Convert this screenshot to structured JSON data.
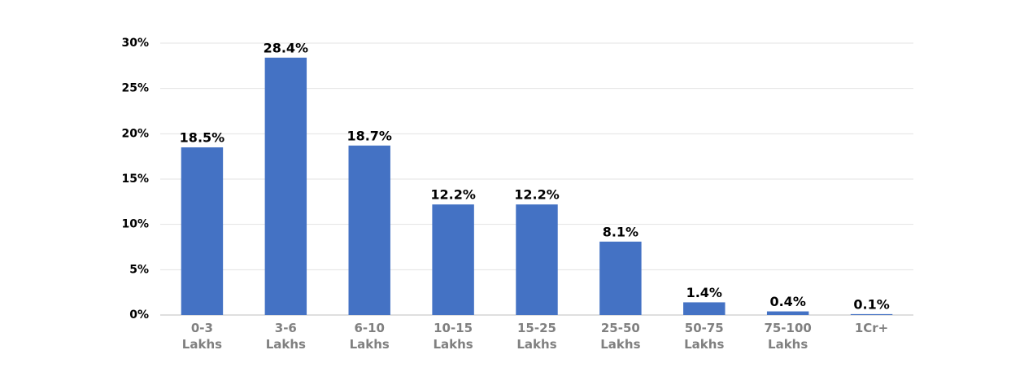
{
  "chart_data": {
    "type": "bar",
    "categories": [
      "0-3 Lakhs",
      "3-6 Lakhs",
      "6-10 Lakhs",
      "10-15 Lakhs",
      "15-25 Lakhs",
      "25-50 Lakhs",
      "50-75 Lakhs",
      "75-100 Lakhs",
      "1Cr+"
    ],
    "values": [
      18.5,
      28.4,
      18.7,
      12.2,
      12.2,
      8.1,
      1.4,
      0.4,
      0.1
    ],
    "value_labels": [
      "18.5%",
      "28.4%",
      "18.7%",
      "12.2%",
      "12.2%",
      "8.1%",
      "1.4%",
      "0.4%",
      "0.1%"
    ],
    "color": "#4472c4",
    "ylim": [
      0,
      30
    ],
    "yticks": [
      {
        "value": 0,
        "label": "0%"
      },
      {
        "value": 5,
        "label": "5%"
      },
      {
        "value": 10,
        "label": "10%"
      },
      {
        "value": 15,
        "label": "15%"
      },
      {
        "value": 20,
        "label": "20%"
      },
      {
        "value": 25,
        "label": "25%"
      },
      {
        "value": 30,
        "label": "30%"
      }
    ],
    "grid": true
  }
}
